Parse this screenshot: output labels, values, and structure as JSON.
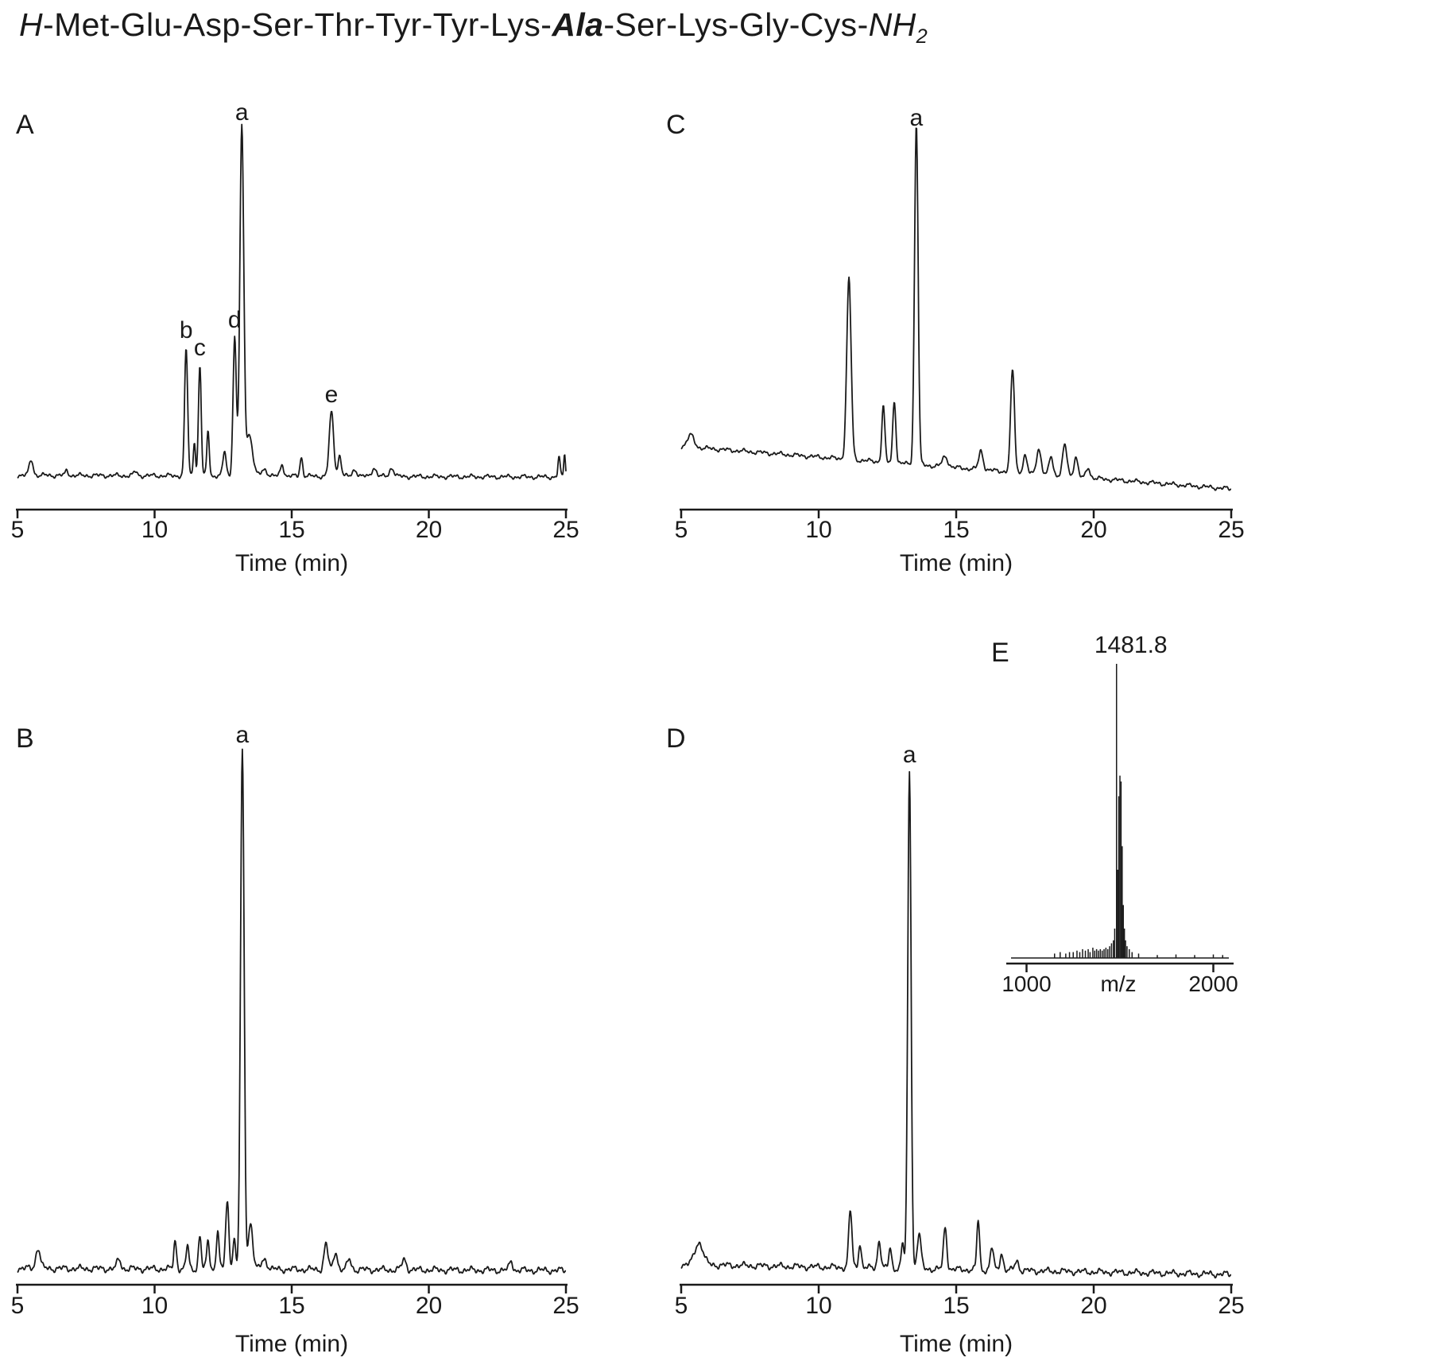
{
  "title": {
    "full": "H-Met-Glu-Asp-Ser-Thr-Tyr-Tyr-Lys-Ala-Ser-Lys-Gly-Cys-NH2",
    "h": "H",
    "seq1": "-Met-Glu-Asp-Ser-Thr-Tyr-Tyr-Lys-",
    "ala": "Ala",
    "seq2": "-Ser-Lys-Gly-Cys-",
    "nh": "NH",
    "sub": "2"
  },
  "colors": {
    "trace": "#1a1a1a",
    "background": "#ffffff"
  },
  "chart_data": [
    {
      "id": "A",
      "type": "line",
      "panel_label": "A",
      "xlabel": "Time (min)",
      "ylabel": "",
      "xlim": [
        5,
        25
      ],
      "xticks": [
        5,
        10,
        15,
        20,
        25
      ],
      "grid": false,
      "peak_labels": [
        {
          "text": "a",
          "t": 13.18,
          "h": 1.0
        },
        {
          "text": "b",
          "t": 11.15,
          "h": 0.37
        },
        {
          "text": "c",
          "t": 11.65,
          "h": 0.32
        },
        {
          "text": "d",
          "t": 12.92,
          "h": 0.4
        },
        {
          "text": "e",
          "t": 16.45,
          "h": 0.185
        }
      ],
      "baseline": {
        "start": 0.005,
        "end": 0.0
      },
      "peaks": [
        [
          5.5,
          0.045,
          0.07
        ],
        [
          6.8,
          0.015,
          0.05
        ],
        [
          9.3,
          0.012,
          0.06
        ],
        [
          11.15,
          0.37,
          0.055
        ],
        [
          11.45,
          0.1,
          0.04
        ],
        [
          11.65,
          0.32,
          0.05
        ],
        [
          11.95,
          0.13,
          0.045
        ],
        [
          12.55,
          0.07,
          0.06
        ],
        [
          12.92,
          0.4,
          0.06
        ],
        [
          13.18,
          1.0,
          0.07
        ],
        [
          13.45,
          0.12,
          0.12
        ],
        [
          14.0,
          0.02,
          0.1
        ],
        [
          14.65,
          0.035,
          0.06
        ],
        [
          15.35,
          0.055,
          0.05
        ],
        [
          16.45,
          0.185,
          0.08
        ],
        [
          16.75,
          0.06,
          0.06
        ],
        [
          17.3,
          0.02,
          0.08
        ],
        [
          18.0,
          0.025,
          0.08
        ],
        [
          18.65,
          0.025,
          0.08
        ],
        [
          24.75,
          0.055,
          0.04
        ],
        [
          24.95,
          0.07,
          0.03
        ]
      ]
    },
    {
      "id": "B",
      "type": "line",
      "panel_label": "B",
      "xlabel": "Time (min)",
      "ylabel": "",
      "xlim": [
        5,
        25
      ],
      "xticks": [
        5,
        10,
        15,
        20,
        25
      ],
      "grid": false,
      "peak_labels": [
        {
          "text": "a",
          "t": 13.2,
          "h": 1.0
        }
      ],
      "baseline": {
        "start": 0.004,
        "end": 0.0
      },
      "peaks": [
        [
          5.75,
          0.04,
          0.08
        ],
        [
          8.7,
          0.018,
          0.07
        ],
        [
          10.75,
          0.055,
          0.05
        ],
        [
          11.2,
          0.045,
          0.05
        ],
        [
          11.65,
          0.065,
          0.05
        ],
        [
          11.95,
          0.055,
          0.05
        ],
        [
          12.3,
          0.075,
          0.05
        ],
        [
          12.65,
          0.13,
          0.06
        ],
        [
          12.9,
          0.06,
          0.05
        ],
        [
          13.2,
          1.0,
          0.065
        ],
        [
          13.5,
          0.09,
          0.08
        ],
        [
          14.0,
          0.02,
          0.1
        ],
        [
          16.25,
          0.05,
          0.07
        ],
        [
          16.6,
          0.035,
          0.07
        ],
        [
          17.1,
          0.02,
          0.07
        ],
        [
          19.1,
          0.02,
          0.08
        ],
        [
          23.0,
          0.018,
          0.06
        ]
      ]
    },
    {
      "id": "C",
      "type": "line",
      "panel_label": "C",
      "xlabel": "Time (min)",
      "ylabel": "",
      "xlim": [
        5,
        25
      ],
      "xticks": [
        5,
        10,
        15,
        20,
        25
      ],
      "grid": false,
      "peak_labels": [
        {
          "text": "a",
          "t": 13.55,
          "h": 1.0
        }
      ],
      "baseline": {
        "start": 0.09,
        "end": -0.035
      },
      "peaks": [
        [
          5.35,
          0.035,
          0.12
        ],
        [
          11.1,
          0.53,
          0.08
        ],
        [
          12.35,
          0.165,
          0.055
        ],
        [
          12.75,
          0.185,
          0.055
        ],
        [
          13.55,
          1.0,
          0.065
        ],
        [
          14.6,
          0.03,
          0.1
        ],
        [
          15.9,
          0.055,
          0.08
        ],
        [
          17.05,
          0.3,
          0.07
        ],
        [
          17.5,
          0.05,
          0.07
        ],
        [
          18.0,
          0.075,
          0.08
        ],
        [
          18.45,
          0.055,
          0.07
        ],
        [
          18.95,
          0.09,
          0.08
        ],
        [
          19.35,
          0.06,
          0.07
        ],
        [
          19.8,
          0.03,
          0.07
        ]
      ]
    },
    {
      "id": "D",
      "type": "line",
      "panel_label": "D",
      "xlabel": "Time (min)",
      "ylabel": "",
      "xlim": [
        5,
        25
      ],
      "xticks": [
        5,
        10,
        15,
        20,
        25
      ],
      "grid": false,
      "peak_labels": [
        {
          "text": "a",
          "t": 13.3,
          "h": 1.0
        }
      ],
      "baseline": {
        "start": 0.012,
        "end": -0.008
      },
      "peaks": [
        [
          5.65,
          0.045,
          0.15
        ],
        [
          11.15,
          0.115,
          0.06
        ],
        [
          11.5,
          0.05,
          0.05
        ],
        [
          12.2,
          0.055,
          0.06
        ],
        [
          12.6,
          0.04,
          0.05
        ],
        [
          13.05,
          0.05,
          0.05
        ],
        [
          13.3,
          1.0,
          0.06
        ],
        [
          13.65,
          0.07,
          0.07
        ],
        [
          14.6,
          0.085,
          0.06
        ],
        [
          15.8,
          0.1,
          0.05
        ],
        [
          16.3,
          0.045,
          0.06
        ],
        [
          16.65,
          0.035,
          0.06
        ],
        [
          17.2,
          0.02,
          0.07
        ]
      ]
    },
    {
      "id": "E",
      "type": "stick",
      "panel_label": "E",
      "xlabel": "m/z",
      "ylabel": "",
      "xlim": [
        900,
        2100
      ],
      "xticks": [
        1000,
        2000
      ],
      "grid": false,
      "annotation": {
        "text": "1481.8",
        "mz": 1481.8
      },
      "sticks": [
        [
          1150,
          0.015
        ],
        [
          1180,
          0.02
        ],
        [
          1210,
          0.015
        ],
        [
          1230,
          0.02
        ],
        [
          1250,
          0.02
        ],
        [
          1270,
          0.025
        ],
        [
          1285,
          0.02
        ],
        [
          1300,
          0.03
        ],
        [
          1315,
          0.025
        ],
        [
          1330,
          0.03
        ],
        [
          1340,
          0.02
        ],
        [
          1355,
          0.035
        ],
        [
          1365,
          0.025
        ],
        [
          1375,
          0.03
        ],
        [
          1385,
          0.025
        ],
        [
          1395,
          0.03
        ],
        [
          1405,
          0.025
        ],
        [
          1415,
          0.03
        ],
        [
          1425,
          0.035
        ],
        [
          1435,
          0.03
        ],
        [
          1445,
          0.04
        ],
        [
          1455,
          0.05
        ],
        [
          1465,
          0.06
        ],
        [
          1472,
          0.1
        ],
        [
          1481.8,
          1.0
        ],
        [
          1488,
          0.3
        ],
        [
          1494,
          0.55
        ],
        [
          1500,
          0.62
        ],
        [
          1506,
          0.6
        ],
        [
          1512,
          0.38
        ],
        [
          1518,
          0.18
        ],
        [
          1524,
          0.1
        ],
        [
          1530,
          0.06
        ],
        [
          1538,
          0.04
        ],
        [
          1550,
          0.03
        ],
        [
          1565,
          0.02
        ],
        [
          1600,
          0.015
        ],
        [
          1700,
          0.01
        ],
        [
          1800,
          0.012
        ],
        [
          1900,
          0.01
        ],
        [
          2000,
          0.012
        ],
        [
          2050,
          0.01
        ]
      ]
    }
  ]
}
